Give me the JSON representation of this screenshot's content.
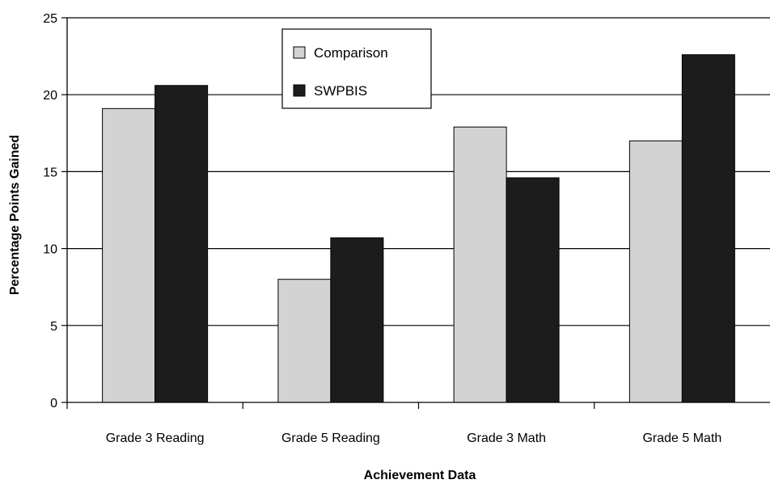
{
  "chart_data": {
    "type": "bar",
    "categories": [
      "Grade 3 Reading",
      "Grade 5 Reading",
      "Grade 3 Math",
      "Grade 5 Math"
    ],
    "series": [
      {
        "name": "Comparison",
        "values": [
          19.1,
          8.0,
          17.9,
          17.0
        ],
        "color": "#d3d3d3"
      },
      {
        "name": "SWPBIS",
        "values": [
          20.6,
          10.7,
          14.6,
          22.6
        ],
        "color": "#1c1c1c"
      }
    ],
    "xlabel": "Achievement Data",
    "ylabel": "Percentage Points Gained",
    "ylim": [
      0,
      25
    ],
    "yticks": [
      0,
      5,
      10,
      15,
      20,
      25
    ],
    "grid": true,
    "legend": "top-center"
  }
}
